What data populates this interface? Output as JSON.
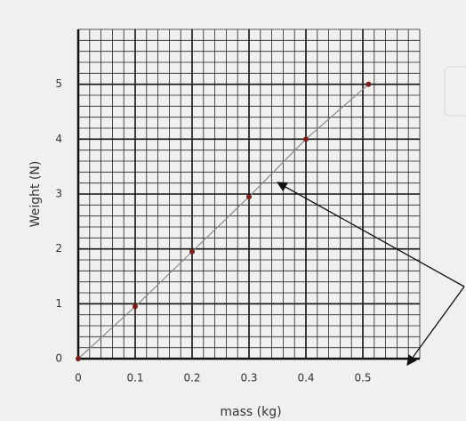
{
  "chart_data": {
    "type": "line",
    "x_label": "mass (kg)",
    "y_label": "Weight (N)",
    "x": [
      0,
      0.1,
      0.2,
      0.3,
      0.4,
      0.51
    ],
    "values": [
      0,
      0.95,
      1.95,
      2.95,
      4,
      5
    ],
    "color": "#8a8a8a",
    "marker_color": "#7a1f1f",
    "xlim": [
      0,
      0.6
    ],
    "xticks": [
      0,
      0.1,
      0.2,
      0.3,
      0.4,
      0.5
    ],
    "ylim": [
      0,
      6
    ],
    "yticks": [
      0,
      1,
      2,
      3,
      4,
      5
    ],
    "grid": true
  }
}
